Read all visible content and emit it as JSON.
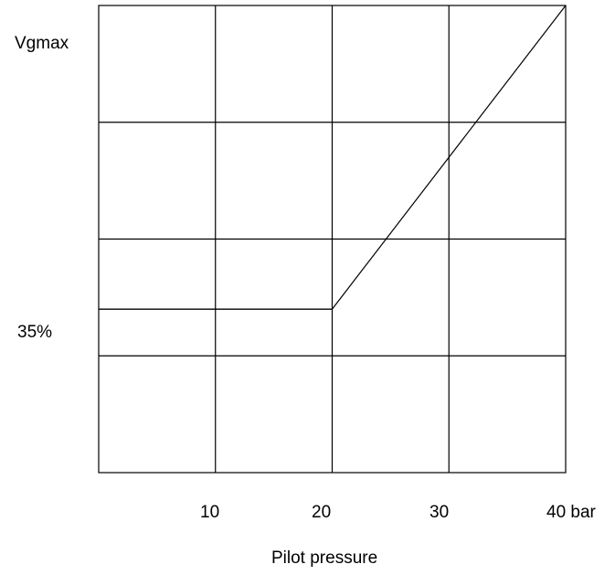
{
  "chart_data": {
    "type": "line",
    "xlabel": "Pilot pressure",
    "ylabel": "",
    "x_tick_labels": [
      "10",
      "20",
      "30",
      "40 bar"
    ],
    "y_tick_labels": [
      "35%",
      "Vgmax"
    ],
    "xlim": [
      0,
      40
    ],
    "ylim": [
      0,
      100
    ],
    "grid": true,
    "series": [
      {
        "x": [
          0,
          20,
          40
        ],
        "y": [
          35,
          35,
          100
        ]
      }
    ],
    "colors": {
      "line": "#000000",
      "grid": "#000000",
      "background": "#ffffff"
    }
  }
}
